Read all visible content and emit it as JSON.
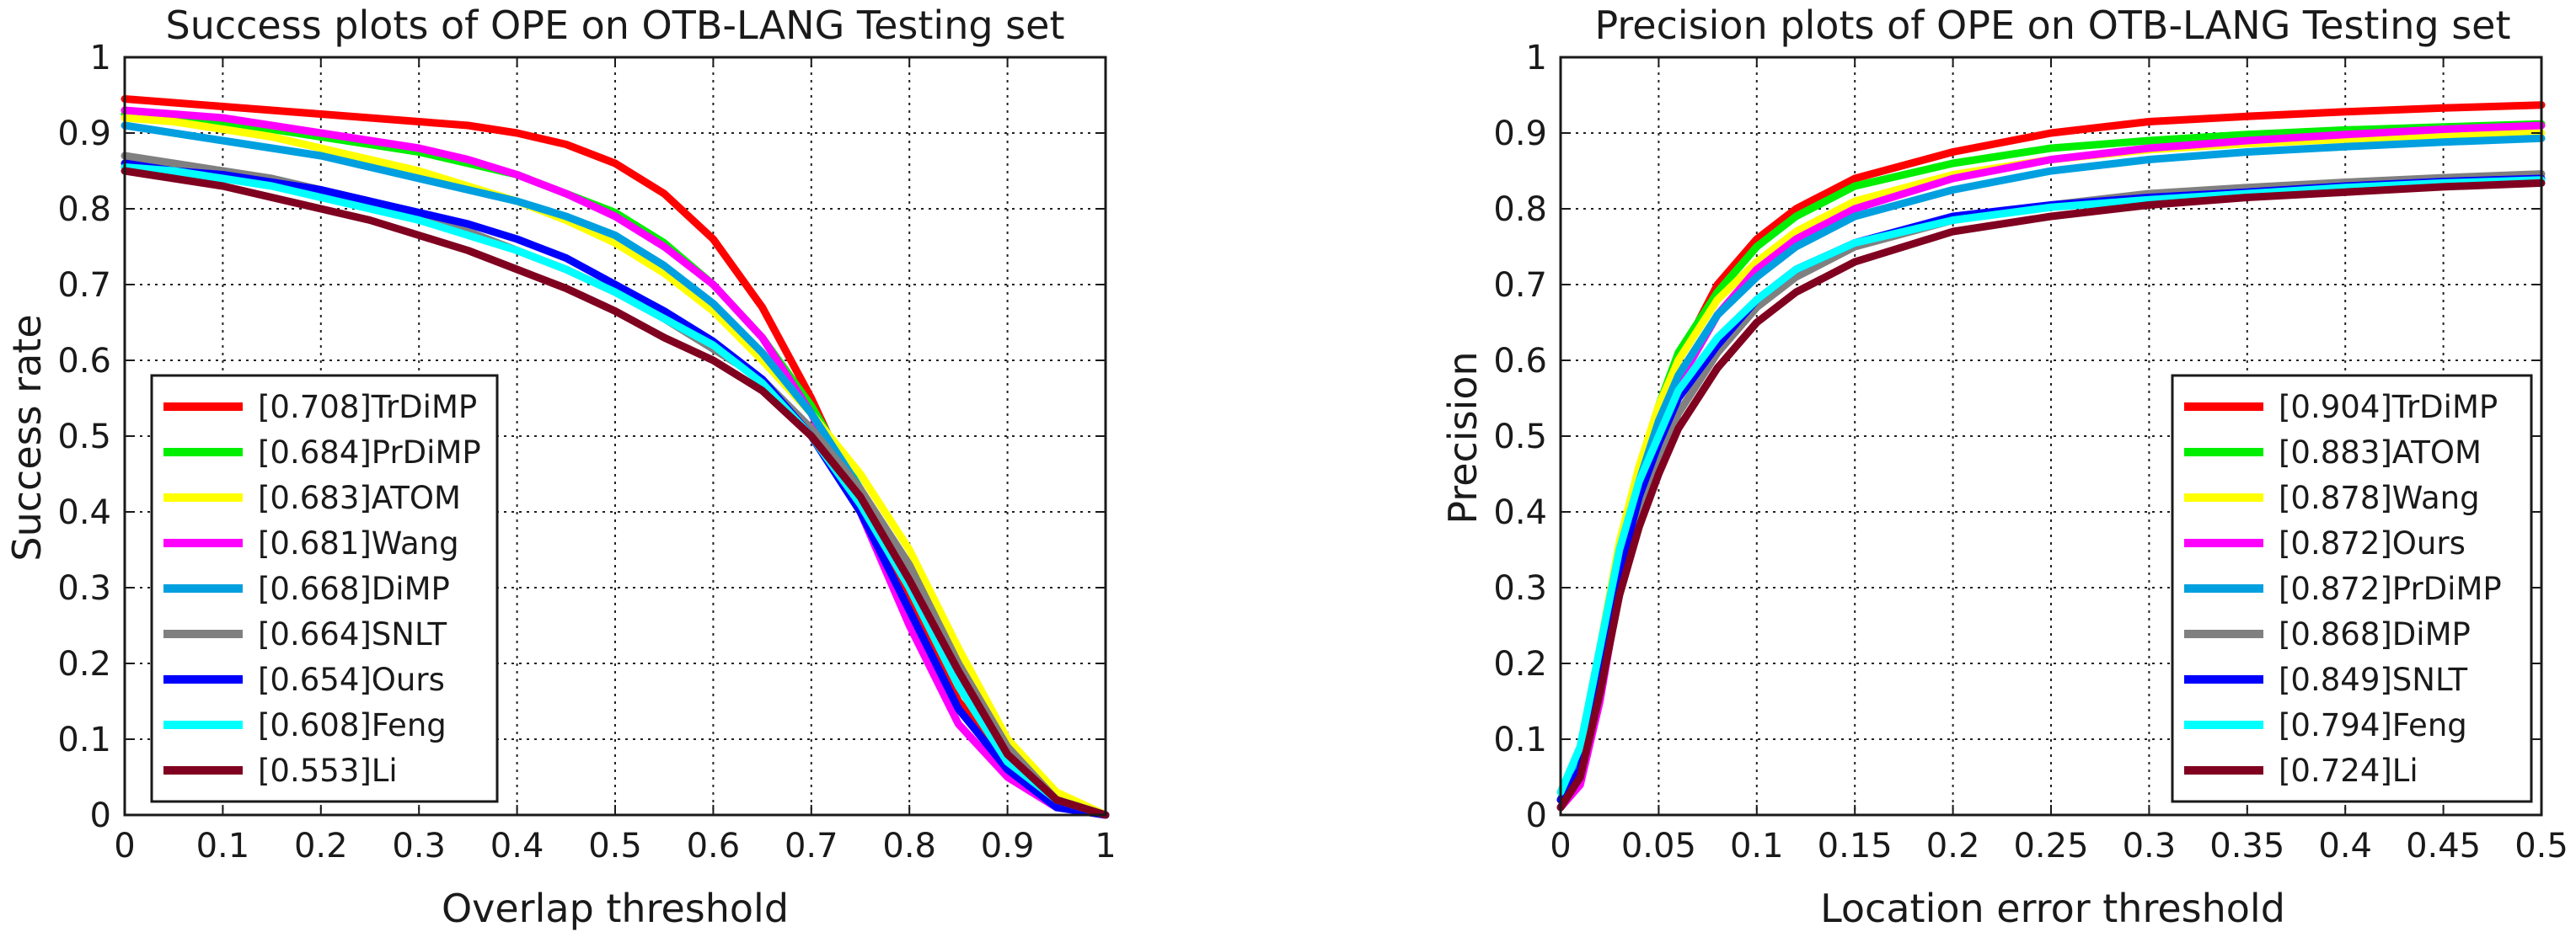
{
  "chart_data": [
    {
      "type": "line",
      "title": "Success plots of OPE on OTB-LANG Testing set",
      "xlabel": "Overlap threshold",
      "ylabel": "Success rate",
      "xlim": [
        0,
        1
      ],
      "ylim": [
        0,
        1
      ],
      "grid": true,
      "legend_position": "lower-left",
      "xticks": [
        0,
        0.1,
        0.2,
        0.3,
        0.4,
        0.5,
        0.6,
        0.7,
        0.8,
        0.9,
        1
      ],
      "xtick_labels": [
        "0",
        "0.1",
        "0.2",
        "0.3",
        "0.4",
        "0.5",
        "0.6",
        "0.7",
        "0.8",
        "0.9",
        "1"
      ],
      "yticks": [
        0,
        0.1,
        0.2,
        0.3,
        0.4,
        0.5,
        0.6,
        0.7,
        0.8,
        0.9,
        1
      ],
      "ytick_labels": [
        "0",
        "0.1",
        "0.2",
        "0.3",
        "0.4",
        "0.5",
        "0.6",
        "0.7",
        "0.8",
        "0.9",
        "1"
      ],
      "x": [
        0,
        0.05,
        0.1,
        0.15,
        0.2,
        0.25,
        0.3,
        0.35,
        0.4,
        0.45,
        0.5,
        0.55,
        0.6,
        0.65,
        0.7,
        0.75,
        0.8,
        0.85,
        0.9,
        0.95,
        1
      ],
      "series": [
        {
          "name": "[0.708]TrDiMP",
          "color": "#ff0000",
          "values": [
            0.945,
            0.94,
            0.935,
            0.93,
            0.925,
            0.92,
            0.915,
            0.91,
            0.9,
            0.885,
            0.86,
            0.82,
            0.76,
            0.67,
            0.55,
            0.41,
            0.28,
            0.15,
            0.07,
            0.02,
            0.0
          ]
        },
        {
          "name": "[0.684]PrDiMP",
          "color": "#00ee00",
          "values": [
            0.925,
            0.92,
            0.915,
            0.905,
            0.895,
            0.885,
            0.875,
            0.86,
            0.845,
            0.82,
            0.795,
            0.755,
            0.7,
            0.63,
            0.54,
            0.43,
            0.3,
            0.17,
            0.07,
            0.02,
            0.0
          ]
        },
        {
          "name": "[0.683]ATOM",
          "color": "#ffff00",
          "values": [
            0.92,
            0.915,
            0.905,
            0.895,
            0.88,
            0.865,
            0.85,
            0.83,
            0.81,
            0.785,
            0.755,
            0.715,
            0.665,
            0.6,
            0.53,
            0.45,
            0.35,
            0.22,
            0.1,
            0.03,
            0.0
          ]
        },
        {
          "name": "[0.681]Wang",
          "color": "#ff00ff",
          "values": [
            0.93,
            0.925,
            0.92,
            0.91,
            0.9,
            0.89,
            0.88,
            0.865,
            0.845,
            0.82,
            0.79,
            0.75,
            0.7,
            0.63,
            0.53,
            0.4,
            0.25,
            0.12,
            0.05,
            0.01,
            0.0
          ]
        },
        {
          "name": "[0.668]DiMP",
          "color": "#00a0e0",
          "values": [
            0.91,
            0.9,
            0.89,
            0.88,
            0.87,
            0.855,
            0.84,
            0.825,
            0.81,
            0.79,
            0.765,
            0.725,
            0.675,
            0.61,
            0.53,
            0.43,
            0.31,
            0.18,
            0.08,
            0.02,
            0.0
          ]
        },
        {
          "name": "[0.664]SNLT",
          "color": "#808080",
          "values": [
            0.87,
            0.86,
            0.85,
            0.84,
            0.825,
            0.81,
            0.79,
            0.77,
            0.745,
            0.72,
            0.69,
            0.655,
            0.615,
            0.575,
            0.51,
            0.43,
            0.33,
            0.2,
            0.09,
            0.02,
            0.0
          ]
        },
        {
          "name": "[0.654]Ours",
          "color": "#0000ff",
          "values": [
            0.86,
            0.85,
            0.845,
            0.835,
            0.825,
            0.81,
            0.795,
            0.78,
            0.76,
            0.735,
            0.7,
            0.665,
            0.625,
            0.575,
            0.5,
            0.4,
            0.27,
            0.14,
            0.06,
            0.01,
            0.0
          ]
        },
        {
          "name": "[0.608]Feng",
          "color": "#00ffff",
          "values": [
            0.855,
            0.85,
            0.84,
            0.83,
            0.815,
            0.8,
            0.785,
            0.765,
            0.745,
            0.72,
            0.69,
            0.655,
            0.62,
            0.57,
            0.5,
            0.41,
            0.3,
            0.17,
            0.07,
            0.02,
            0.0
          ]
        },
        {
          "name": "[0.553]Li",
          "color": "#800020",
          "values": [
            0.85,
            0.84,
            0.83,
            0.815,
            0.8,
            0.785,
            0.765,
            0.745,
            0.72,
            0.695,
            0.665,
            0.63,
            0.6,
            0.56,
            0.5,
            0.42,
            0.31,
            0.19,
            0.08,
            0.02,
            0.0
          ]
        }
      ]
    },
    {
      "type": "line",
      "title": "Precision plots of OPE on OTB-LANG Testing set",
      "xlabel": "Location error threshold",
      "ylabel": "Precision",
      "xlim": [
        0,
        0.5
      ],
      "ylim": [
        0,
        1
      ],
      "grid": true,
      "legend_position": "lower-right",
      "xticks": [
        0,
        0.05,
        0.1,
        0.15,
        0.2,
        0.25,
        0.3,
        0.35,
        0.4,
        0.45,
        0.5
      ],
      "xtick_labels": [
        "0",
        "0.05",
        "0.1",
        "0.15",
        "0.2",
        "0.25",
        "0.3",
        "0.35",
        "0.4",
        "0.45",
        "0.5"
      ],
      "yticks": [
        0,
        0.1,
        0.2,
        0.3,
        0.4,
        0.5,
        0.6,
        0.7,
        0.8,
        0.9,
        1
      ],
      "ytick_labels": [
        "0",
        "0.1",
        "0.2",
        "0.3",
        "0.4",
        "0.5",
        "0.6",
        "0.7",
        "0.8",
        "0.9",
        "1"
      ],
      "x": [
        0,
        0.01,
        0.02,
        0.03,
        0.04,
        0.05,
        0.06,
        0.08,
        0.1,
        0.12,
        0.15,
        0.2,
        0.25,
        0.3,
        0.35,
        0.4,
        0.45,
        0.5
      ],
      "series": [
        {
          "name": "[0.904]TrDiMP",
          "color": "#ff0000",
          "values": [
            0.02,
            0.06,
            0.18,
            0.32,
            0.44,
            0.53,
            0.6,
            0.7,
            0.76,
            0.8,
            0.84,
            0.875,
            0.9,
            0.915,
            0.922,
            0.928,
            0.933,
            0.937
          ]
        },
        {
          "name": "[0.883]ATOM",
          "color": "#00ee00",
          "values": [
            0.02,
            0.07,
            0.2,
            0.34,
            0.45,
            0.54,
            0.61,
            0.69,
            0.75,
            0.79,
            0.83,
            0.86,
            0.88,
            0.89,
            0.898,
            0.904,
            0.908,
            0.912
          ]
        },
        {
          "name": "[0.878]Wang",
          "color": "#ffff00",
          "values": [
            0.03,
            0.09,
            0.22,
            0.36,
            0.46,
            0.54,
            0.6,
            0.68,
            0.73,
            0.77,
            0.81,
            0.845,
            0.865,
            0.878,
            0.886,
            0.892,
            0.897,
            0.9
          ]
        },
        {
          "name": "[0.872]Ours",
          "color": "#ff00ff",
          "values": [
            0.01,
            0.04,
            0.15,
            0.3,
            0.41,
            0.5,
            0.57,
            0.66,
            0.72,
            0.76,
            0.8,
            0.84,
            0.865,
            0.88,
            0.89,
            0.898,
            0.905,
            0.91
          ]
        },
        {
          "name": "[0.872]PrDiMP",
          "color": "#00a0e0",
          "values": [
            0.02,
            0.08,
            0.21,
            0.34,
            0.44,
            0.52,
            0.58,
            0.66,
            0.71,
            0.75,
            0.79,
            0.825,
            0.85,
            0.865,
            0.875,
            0.882,
            0.888,
            0.893
          ]
        },
        {
          "name": "[0.868]DiMP",
          "color": "#808080",
          "values": [
            0.02,
            0.06,
            0.18,
            0.3,
            0.4,
            0.47,
            0.53,
            0.61,
            0.67,
            0.71,
            0.75,
            0.785,
            0.805,
            0.82,
            0.828,
            0.835,
            0.841,
            0.846
          ]
        },
        {
          "name": "[0.849]SNLT",
          "color": "#0000ff",
          "values": [
            0.02,
            0.06,
            0.19,
            0.32,
            0.42,
            0.49,
            0.55,
            0.62,
            0.68,
            0.72,
            0.755,
            0.79,
            0.805,
            0.815,
            0.822,
            0.83,
            0.836,
            0.84
          ]
        },
        {
          "name": "[0.794]Feng",
          "color": "#00ffff",
          "values": [
            0.03,
            0.09,
            0.22,
            0.35,
            0.44,
            0.5,
            0.56,
            0.63,
            0.68,
            0.72,
            0.755,
            0.785,
            0.802,
            0.812,
            0.82,
            0.828,
            0.834,
            0.838
          ]
        },
        {
          "name": "[0.724]Li",
          "color": "#800020",
          "values": [
            0.01,
            0.05,
            0.16,
            0.29,
            0.38,
            0.45,
            0.51,
            0.59,
            0.65,
            0.69,
            0.73,
            0.77,
            0.79,
            0.805,
            0.815,
            0.822,
            0.829,
            0.834
          ]
        }
      ]
    }
  ]
}
